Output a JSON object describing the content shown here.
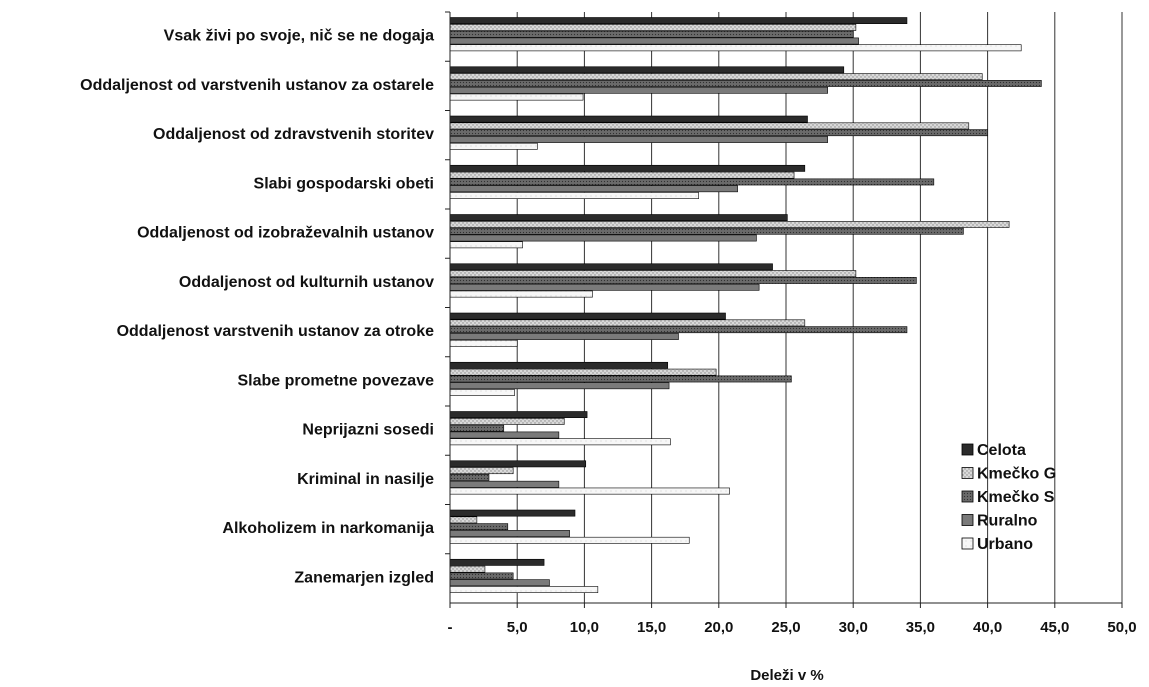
{
  "chart_data": {
    "type": "bar",
    "orientation": "horizontal",
    "title": "",
    "xlabel": "Deleži v %",
    "ylabel": "",
    "xlim": [
      0,
      50
    ],
    "xticks": [
      "-",
      "5,0",
      "10,0",
      "15,0",
      "20,0",
      "25,0",
      "30,0",
      "35,0",
      "40,0",
      "45,0",
      "50,0"
    ],
    "grid": true,
    "legend_position": "bottom-right",
    "categories": [
      "Vsak živi po svoje, nič se ne dogaja",
      "Oddaljenost od varstvenih ustanov za ostarele",
      "Oddaljenost od zdravstvenih storitev",
      "Slabi gospodarski obeti",
      "Oddaljenost od izobraževalnih ustanov",
      "Oddaljenost od kulturnih ustanov",
      "Oddaljenost varstvenih ustanov za otroke",
      "Slabe prometne povezave",
      "Neprijazni sosedi",
      "Kriminal in nasilje",
      "Alkoholizem in narkomanija",
      "Zanemarjen izgled"
    ],
    "series": [
      {
        "name": "Celota",
        "color": "#2a2a2a",
        "values": [
          34.0,
          29.3,
          26.6,
          26.4,
          25.1,
          24.0,
          20.5,
          16.2,
          10.2,
          10.1,
          9.3,
          7.0
        ]
      },
      {
        "name": "Kmečko G",
        "color": "#a9a9a9",
        "values": [
          30.2,
          39.6,
          38.6,
          25.6,
          41.6,
          30.2,
          26.4,
          19.8,
          8.5,
          4.7,
          2.0,
          2.6
        ]
      },
      {
        "name": "Kmečko S",
        "color": "#5b5b5b",
        "values": [
          30.0,
          44.0,
          40.0,
          36.0,
          38.2,
          34.7,
          34.0,
          25.4,
          4.0,
          2.9,
          4.3,
          4.7
        ]
      },
      {
        "name": "Ruralno",
        "color": "#767676",
        "values": [
          30.4,
          28.1,
          28.1,
          21.4,
          22.8,
          23.0,
          17.0,
          16.3,
          8.1,
          8.1,
          8.9,
          7.4
        ]
      },
      {
        "name": "Urbano",
        "color": "#f2f2f2",
        "values": [
          42.5,
          9.9,
          6.5,
          18.5,
          5.4,
          10.6,
          5.0,
          4.8,
          16.4,
          20.8,
          17.8,
          11.0
        ]
      }
    ]
  }
}
